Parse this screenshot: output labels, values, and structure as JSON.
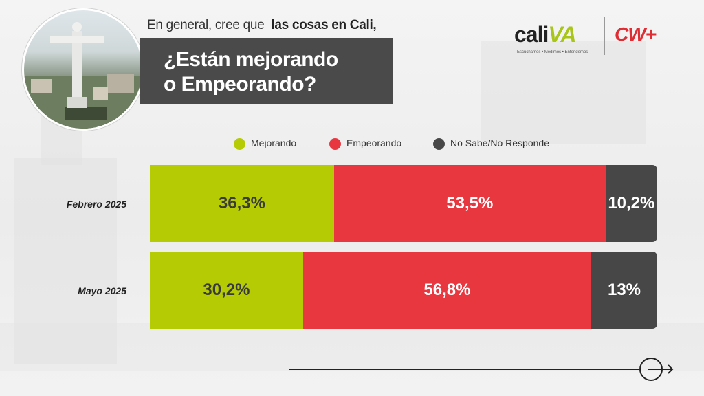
{
  "header": {
    "subtitle_plain": "En general, cree que",
    "subtitle_bold": "las cosas en Cali,",
    "title_line1": "¿Están mejorando",
    "title_line2": "o Empeorando?"
  },
  "logos": {
    "caliva_cali": "cali",
    "caliva_va": "VA",
    "caliva_tagline": "Escuchamos • Medimos • Entendemos",
    "cw": "CW+"
  },
  "colors": {
    "mejorando": "#b5cc05",
    "empeorando": "#e8373f",
    "nosabe": "#474747"
  },
  "chart_data": {
    "type": "bar",
    "stacked": true,
    "orientation": "horizontal",
    "categories": [
      "Febrero 2025",
      "Mayo 2025"
    ],
    "series": [
      {
        "name": "Mejorando",
        "values": [
          36.3,
          30.2
        ],
        "labels": [
          "36,3%",
          "30,2%"
        ]
      },
      {
        "name": "Empeorando",
        "values": [
          53.5,
          56.8
        ],
        "labels": [
          "53,5%",
          "56,8%"
        ]
      },
      {
        "name": "No Sabe/No Responde",
        "values": [
          10.2,
          13
        ],
        "labels": [
          "10,2%",
          "13%"
        ]
      }
    ],
    "legend_position": "top"
  }
}
